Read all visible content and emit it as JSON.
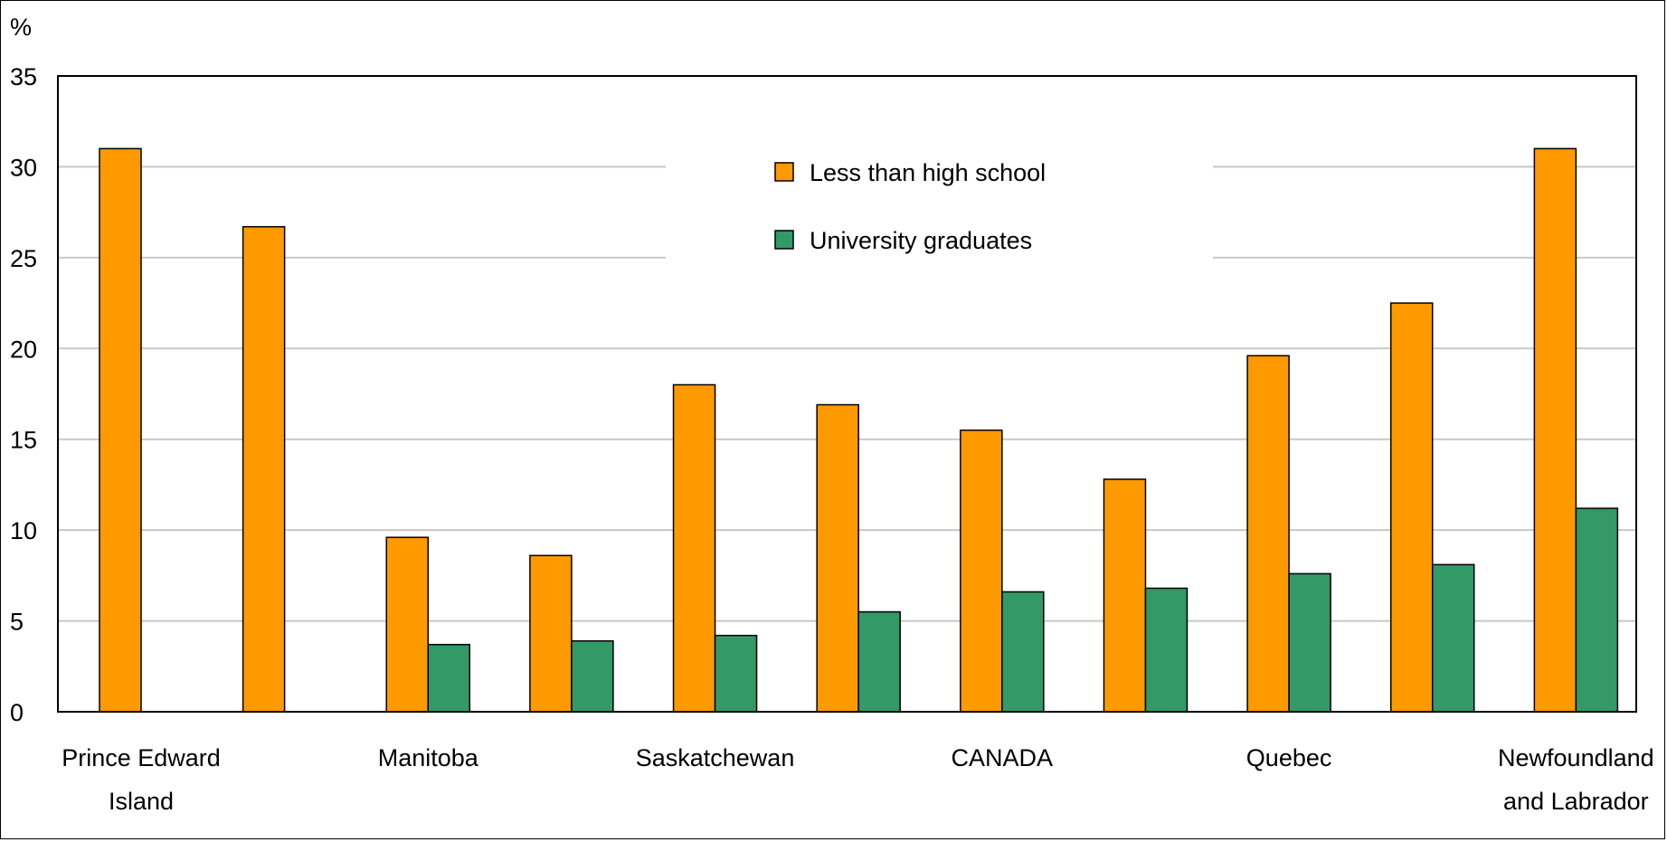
{
  "chart_data": {
    "type": "bar",
    "ylabel": "%",
    "ylim": [
      0,
      35
    ],
    "yticks": [
      0,
      5,
      10,
      15,
      20,
      25,
      30,
      35
    ],
    "grid": true,
    "legend_position": "top-center",
    "categories": [
      "Prince Edward Island",
      "",
      "Manitoba",
      "",
      "Saskatchewan",
      "",
      "CANADA",
      "",
      "Quebec",
      "",
      "Newfoundland and Labrador"
    ],
    "category_label_lines": [
      [
        "Prince Edward",
        "Island"
      ],
      [],
      [
        "Manitoba"
      ],
      [],
      [
        "Saskatchewan"
      ],
      [],
      [
        "CANADA"
      ],
      [],
      [
        "Quebec"
      ],
      [],
      [
        "Newfoundland",
        "and Labrador"
      ]
    ],
    "series": [
      {
        "name": "Less than high school",
        "color": "#FF9900",
        "values": [
          31.0,
          26.7,
          9.6,
          8.6,
          18.0,
          16.9,
          15.5,
          12.8,
          19.6,
          22.5,
          31.0
        ]
      },
      {
        "name": "University graduates",
        "color": "#339966",
        "values": [
          null,
          null,
          3.7,
          3.9,
          4.2,
          5.5,
          6.6,
          6.8,
          7.6,
          8.1,
          11.2
        ]
      }
    ]
  }
}
